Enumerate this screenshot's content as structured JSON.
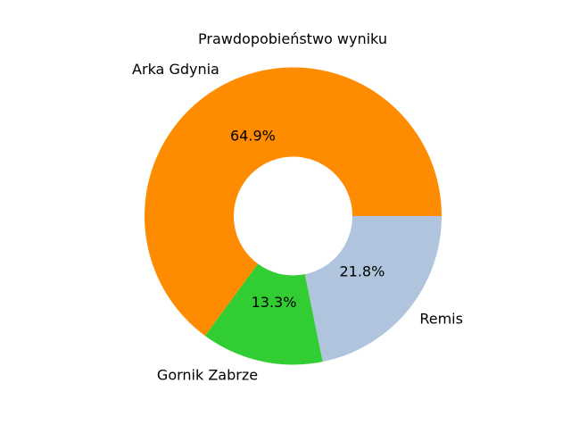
{
  "chart_data": {
    "type": "pie",
    "title": "Prawdopobieństwo wyniku",
    "donut": true,
    "slices": [
      {
        "label": "Arka Gdynia",
        "value": 64.9,
        "pct_label": "64.9%",
        "color": "#ff8c00"
      },
      {
        "label": "Gornik Zabrze",
        "value": 13.3,
        "pct_label": "13.3%",
        "color": "#32cd32"
      },
      {
        "label": "Remis",
        "value": 21.8,
        "pct_label": "21.8%",
        "color": "#b0c4de"
      }
    ]
  }
}
